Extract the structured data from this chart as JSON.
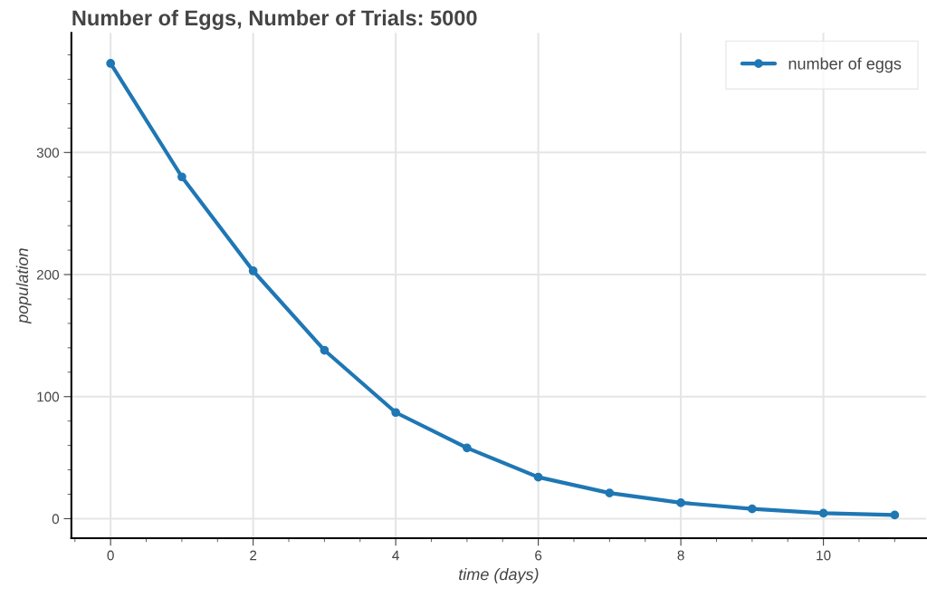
{
  "chart_data": {
    "type": "line",
    "title": "Number of Eggs, Number of Trials: 5000",
    "xlabel": "time (days)",
    "ylabel": "population",
    "x": [
      0,
      1,
      2,
      3,
      4,
      5,
      6,
      7,
      8,
      9,
      10,
      11
    ],
    "series": [
      {
        "name": "number of eggs",
        "color": "#1f77b4",
        "values": [
          373,
          280,
          203,
          138,
          87,
          58,
          34,
          21,
          13,
          8,
          4.5,
          3
        ]
      }
    ],
    "xlim": [
      -0.55,
      11.44
    ],
    "ylim": [
      -16,
      398
    ],
    "xticks": [
      0,
      2,
      4,
      6,
      8,
      10
    ],
    "yticks": [
      0,
      100,
      200,
      300
    ],
    "grid": true,
    "legend": "top right",
    "marker": "circle",
    "line_style": "solid"
  }
}
